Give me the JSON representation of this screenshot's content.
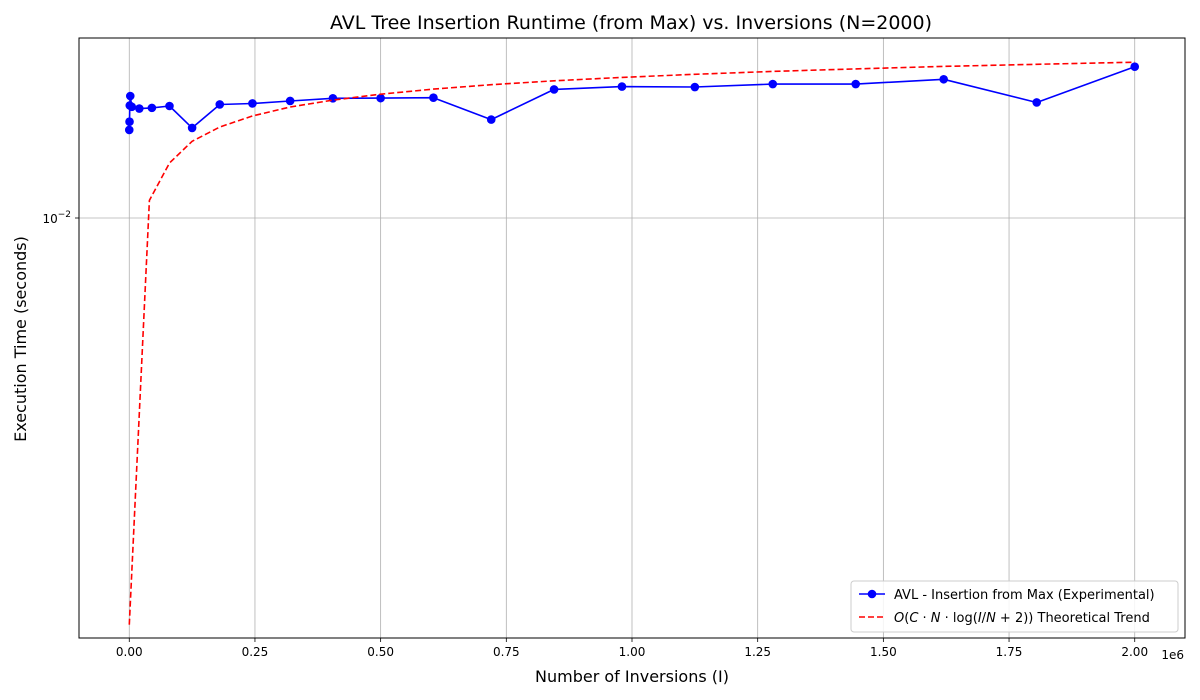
{
  "chart_data": {
    "type": "line",
    "title": "AVL Tree Insertion Runtime (from Max) vs. Inversions (N=2000)",
    "xlabel": "Number of Inversions (I)",
    "ylabel": "Execution Time (seconds)",
    "x_scale": "linear",
    "y_scale": "log",
    "x_offset_label": "1e6",
    "xlim": [
      -100000,
      2100000
    ],
    "ylim_log10": [
      -2.7,
      -1.7
    ],
    "x_ticks": [
      0,
      250000,
      500000,
      750000,
      1000000,
      1250000,
      1500000,
      1750000,
      2000000
    ],
    "x_tick_labels": [
      "0.00",
      "0.25",
      "0.50",
      "0.75",
      "1.00",
      "1.25",
      "1.50",
      "1.75",
      "2.00"
    ],
    "y_ticks": [
      0.01
    ],
    "y_tick_labels": [
      "10",
      "−2"
    ],
    "grid": true,
    "legend_position": "lower-right",
    "series": [
      {
        "name": "AVL - Insertion from Max (Experimental)",
        "color": "#0000ff",
        "style": "solid",
        "marker": "circle",
        "x": [
          0,
          500,
          1000,
          2000,
          5000,
          20000,
          45000,
          80000,
          125000,
          180000,
          245000,
          320000,
          405000,
          500000,
          605000,
          720000,
          845000,
          980000,
          1125000,
          1280000,
          1445000,
          1620000,
          1805000,
          2000000
        ],
        "y": [
          0.01402,
          0.01447,
          0.0154,
          0.01597,
          0.01532,
          0.01522,
          0.01526,
          0.01537,
          0.01413,
          0.01546,
          0.01552,
          0.01567,
          0.01583,
          0.01584,
          0.01587,
          0.01459,
          0.01638,
          0.01656,
          0.01653,
          0.01672,
          0.01672,
          0.01703,
          0.01558,
          0.01787
        ]
      },
      {
        "name": "O(C·N·log(I/N+2)) Theoretical Trend",
        "color": "#ff0000",
        "style": "dashed",
        "marker": "none",
        "x": [
          0,
          40000,
          80000,
          125000,
          180000,
          245000,
          320000,
          405000,
          500000,
          605000,
          720000,
          845000,
          980000,
          1125000,
          1280000,
          1445000,
          1620000,
          1805000,
          2000000
        ],
        "y": [
          0.0021,
          0.0107,
          0.01235,
          0.01342,
          0.01418,
          0.01479,
          0.01531,
          0.01572,
          0.01608,
          0.0164,
          0.01668,
          0.01693,
          0.01715,
          0.01736,
          0.01755,
          0.01772,
          0.01789,
          0.01804,
          0.01818
        ]
      }
    ]
  },
  "legend": {
    "entries": [
      {
        "label": "AVL - Insertion from Max (Experimental)",
        "color": "#0000ff",
        "style": "solid"
      },
      {
        "label_parts": [
          "O",
          "(",
          "C",
          " · ",
          "N",
          " · log(",
          "I",
          "/",
          "N",
          " + 2)) Theoretical Trend"
        ],
        "color": "#ff0000",
        "style": "dashed"
      }
    ]
  }
}
